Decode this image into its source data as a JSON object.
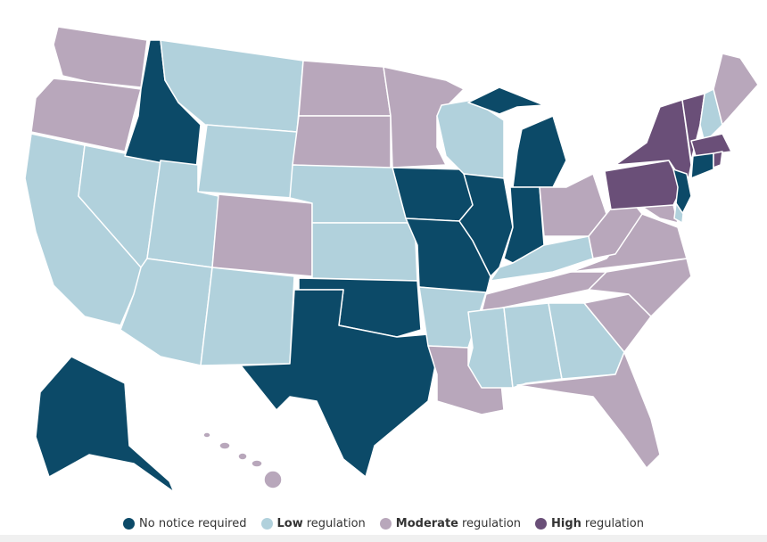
{
  "legend": [
    {
      "label": "No notice required",
      "color": "#0c4a68"
    },
    {
      "strong": "Low",
      "label": "regulation",
      "color": "#b1d1dc"
    },
    {
      "strong": "Moderate",
      "label": "regulation",
      "color": "#b8a7bb"
    },
    {
      "strong": "High",
      "label": "regulation",
      "color": "#6a4f78"
    }
  ]
}
